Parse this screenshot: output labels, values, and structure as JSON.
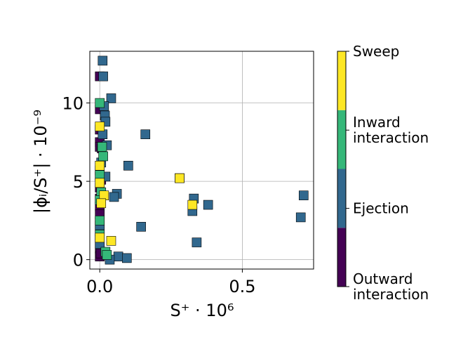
{
  "chart_data": {
    "type": "scatter",
    "xlabel": "S⁺ · 10⁶",
    "ylabel": "|ϕᵢ/S⁺| · 10⁻⁹",
    "xlim": [
      -0.035,
      0.75
    ],
    "ylim": [
      -0.6,
      13.3
    ],
    "x_ticks": [
      0.0,
      0.5
    ],
    "x_tick_labels": [
      "0.0",
      "0.5"
    ],
    "y_ticks": [
      0,
      5,
      10
    ],
    "y_tick_labels": [
      "0",
      "5",
      "10"
    ],
    "grid": true,
    "colorbar": {
      "position": "right",
      "categories": [
        {
          "label": [
            "Outward",
            "interaction"
          ],
          "color": "#440154"
        },
        {
          "label": [
            "Ejection"
          ],
          "color": "#31688e"
        },
        {
          "label": [
            "Inward",
            "interaction"
          ],
          "color": "#35b779"
        },
        {
          "label": [
            "Sweep"
          ],
          "color": "#fde725"
        }
      ]
    },
    "series": [
      {
        "category": "Outward interaction",
        "color": "#440154",
        "points": [
          [
            0.0,
            11.7
          ],
          [
            0.0,
            9.6
          ],
          [
            0.0,
            8.3
          ],
          [
            0.0,
            7.5
          ],
          [
            0.0,
            7.2
          ],
          [
            0.0,
            5.7
          ],
          [
            0.0,
            5.3
          ],
          [
            0.0,
            4.6
          ],
          [
            0.0,
            3.9
          ],
          [
            0.0,
            3.4
          ],
          [
            0.0,
            2.9
          ],
          [
            0.0,
            2.4
          ],
          [
            0.0,
            1.8
          ],
          [
            0.0,
            1.3
          ],
          [
            0.0,
            0.7
          ],
          [
            0.0,
            0.2
          ],
          [
            0.003,
            0.4
          ],
          [
            0.005,
            5.1
          ],
          [
            0.007,
            7.1
          ]
        ]
      },
      {
        "category": "Ejection",
        "color": "#31688e",
        "points": [
          [
            0.01,
            12.7
          ],
          [
            0.012,
            11.7
          ],
          [
            0.04,
            10.3
          ],
          [
            0.015,
            9.8
          ],
          [
            0.018,
            9.2
          ],
          [
            0.02,
            8.8
          ],
          [
            0.16,
            8.0
          ],
          [
            0.025,
            7.3
          ],
          [
            0.1,
            6.0
          ],
          [
            0.02,
            5.3
          ],
          [
            0.28,
            5.2
          ],
          [
            0.06,
            4.2
          ],
          [
            0.05,
            4.0
          ],
          [
            0.715,
            4.1
          ],
          [
            0.33,
            3.9
          ],
          [
            0.38,
            3.5
          ],
          [
            0.325,
            3.1
          ],
          [
            0.705,
            2.7
          ],
          [
            0.145,
            2.1
          ],
          [
            0.0,
            2.2
          ],
          [
            0.34,
            1.1
          ],
          [
            0.0,
            1.0
          ],
          [
            0.065,
            0.2
          ],
          [
            0.095,
            0.1
          ],
          [
            0.035,
            0.0
          ],
          [
            0.01,
            8.0
          ],
          [
            0.005,
            6.2
          ]
        ]
      },
      {
        "category": "Inward interaction",
        "color": "#35b779",
        "points": [
          [
            0.0,
            10.0
          ],
          [
            0.008,
            7.2
          ],
          [
            0.012,
            6.6
          ],
          [
            0.0,
            5.4
          ],
          [
            0.005,
            4.3
          ],
          [
            0.0,
            3.8
          ],
          [
            0.0,
            2.5
          ],
          [
            0.0,
            1.6
          ],
          [
            0.02,
            0.5
          ],
          [
            0.025,
            0.3
          ]
        ]
      },
      {
        "category": "Sweep",
        "color": "#fde725",
        "points": [
          [
            0.28,
            5.2
          ],
          [
            0.325,
            3.5
          ],
          [
            0.04,
            1.2
          ],
          [
            0.0,
            8.5
          ],
          [
            0.0,
            6.0
          ],
          [
            0.0,
            4.9
          ],
          [
            0.015,
            4.1
          ],
          [
            0.0,
            1.4
          ],
          [
            0.005,
            3.6
          ]
        ]
      }
    ]
  }
}
